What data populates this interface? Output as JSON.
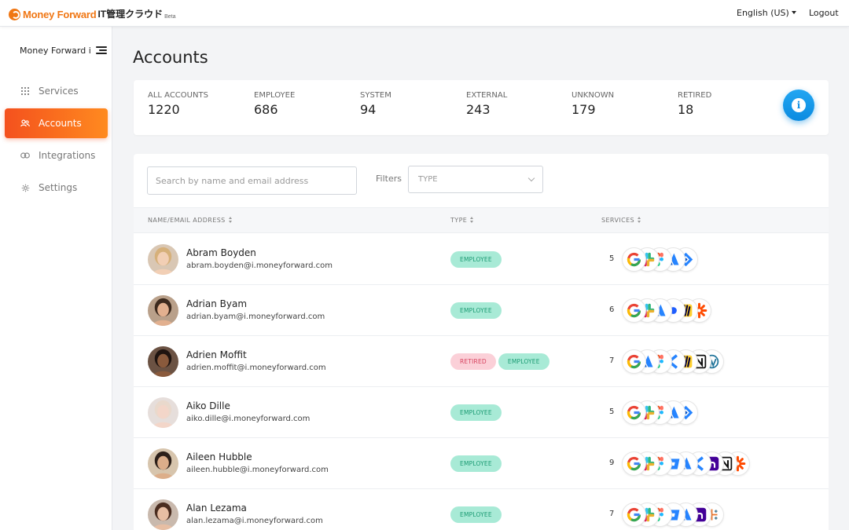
{
  "header": {
    "brand_name": "Money Forward",
    "brand_product": "IT管理クラウド",
    "brand_tag": "Beta",
    "language": "English (US)",
    "logout": "Logout"
  },
  "sidebar": {
    "org_name": "Money Forward i",
    "items": [
      {
        "label": "Services",
        "icon": "grid-icon"
      },
      {
        "label": "Accounts",
        "icon": "users-icon",
        "active": true
      },
      {
        "label": "Integrations",
        "icon": "link-icon"
      },
      {
        "label": "Settings",
        "icon": "gear-icon"
      }
    ]
  },
  "page": {
    "title": "Accounts"
  },
  "stats": [
    {
      "label": "ALL ACCOUNTS",
      "value": "1220"
    },
    {
      "label": "EMPLOYEE",
      "value": "686"
    },
    {
      "label": "SYSTEM",
      "value": "94"
    },
    {
      "label": "EXTERNAL",
      "value": "243"
    },
    {
      "label": "UNKNOWN",
      "value": "179"
    },
    {
      "label": "RETIRED",
      "value": "18"
    }
  ],
  "search": {
    "placeholder": "Search by name and email address"
  },
  "filters": {
    "label": "Filters",
    "type_placeholder": "TYPE"
  },
  "table": {
    "columns": [
      "NAME/EMAIL ADDRESS",
      "TYPE",
      "SERVICES"
    ],
    "rows": [
      {
        "name": "Abram Boyden",
        "email": "abram.boyden@i.moneyforward.com",
        "types": [
          "EMPLOYEE"
        ],
        "service_count": "5",
        "services": [
          "google-icon",
          "slack-icon",
          "figma-icon",
          "atlassian-icon",
          "jira-icon"
        ]
      },
      {
        "name": "Adrian Byam",
        "email": "adrian.byam@i.moneyforward.com",
        "types": [
          "EMPLOYEE"
        ],
        "service_count": "6",
        "services": [
          "google-icon",
          "slack-icon",
          "atlassian-icon",
          "dot-icon",
          "miro-icon",
          "zapier-icon"
        ]
      },
      {
        "name": "Adrien Moffit",
        "email": "adrien.moffit@i.moneyforward.com",
        "types": [
          "RETIRED",
          "EMPLOYEE"
        ],
        "service_count": "7",
        "services": [
          "google-icon",
          "atlassian-icon",
          "figma-icon",
          "chevron-service-icon",
          "miro-icon",
          "notion-icon",
          "wordpress-icon"
        ]
      },
      {
        "name": "Aiko Dille",
        "email": "aiko.dille@i.moneyforward.com",
        "types": [
          "EMPLOYEE"
        ],
        "service_count": "5",
        "services": [
          "google-icon",
          "slack-icon",
          "figma-icon",
          "atlassian-icon",
          "jira-icon"
        ]
      },
      {
        "name": "Aileen Hubble",
        "email": "aileen.hubble@i.moneyforward.com",
        "types": [
          "EMPLOYEE"
        ],
        "service_count": "9",
        "services": [
          "google-icon",
          "slack-icon",
          "figma-icon",
          "bitbucket-icon",
          "atlassian-icon",
          "chevron-service-icon",
          "heroku-icon",
          "notion-icon",
          "zapier-icon"
        ]
      },
      {
        "name": "Alan Lezama",
        "email": "alan.lezama@i.moneyforward.com",
        "types": [
          "EMPLOYEE"
        ],
        "service_count": "7",
        "services": [
          "google-icon",
          "slack-icon",
          "figma-icon",
          "bitbucket-icon",
          "atlassian-icon",
          "heroku-icon",
          "tableau-icon"
        ]
      }
    ]
  },
  "colors": {
    "accent": "#f4511e",
    "accent_end": "#ff8a1f",
    "info": "#1190e4",
    "employee_bg": "#a8ead6",
    "employee_text": "#1b9b73",
    "retired_bg": "#fbd0d8",
    "retired_text": "#d7435f"
  }
}
